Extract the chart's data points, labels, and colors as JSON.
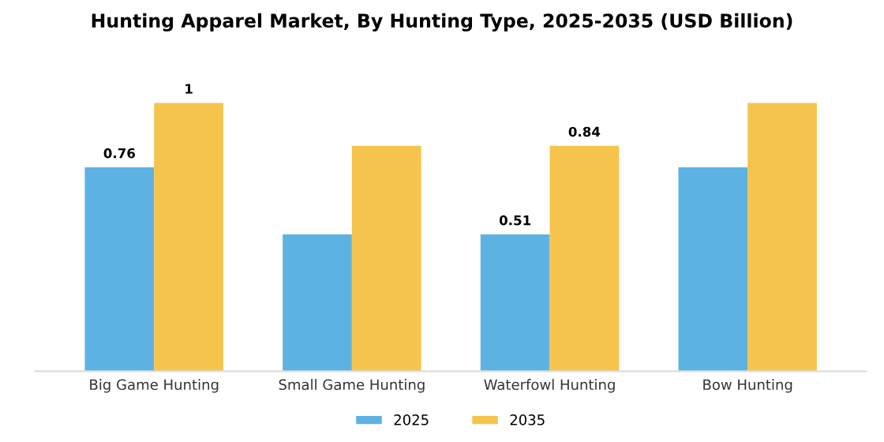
{
  "chart_data": {
    "type": "bar",
    "title": "Hunting Apparel Market, By Hunting Type, 2025-2035 (USD Billion)",
    "categories": [
      "Big Game Hunting",
      "Small Game Hunting",
      "Waterfowl Hunting",
      "Bow Hunting"
    ],
    "series": [
      {
        "name": "2025",
        "color": "#5db2e4",
        "values": [
          0.76,
          0.51,
          0.51,
          0.76
        ],
        "value_labels": [
          "0.76",
          null,
          "0.51",
          null
        ]
      },
      {
        "name": "2035",
        "color": "#f6c44c",
        "values": [
          1,
          0.84,
          0.84,
          1
        ],
        "value_labels": [
          "1",
          null,
          "0.84",
          null
        ]
      }
    ],
    "legend": "bottom",
    "grid": false,
    "tick_labels": "x"
  }
}
